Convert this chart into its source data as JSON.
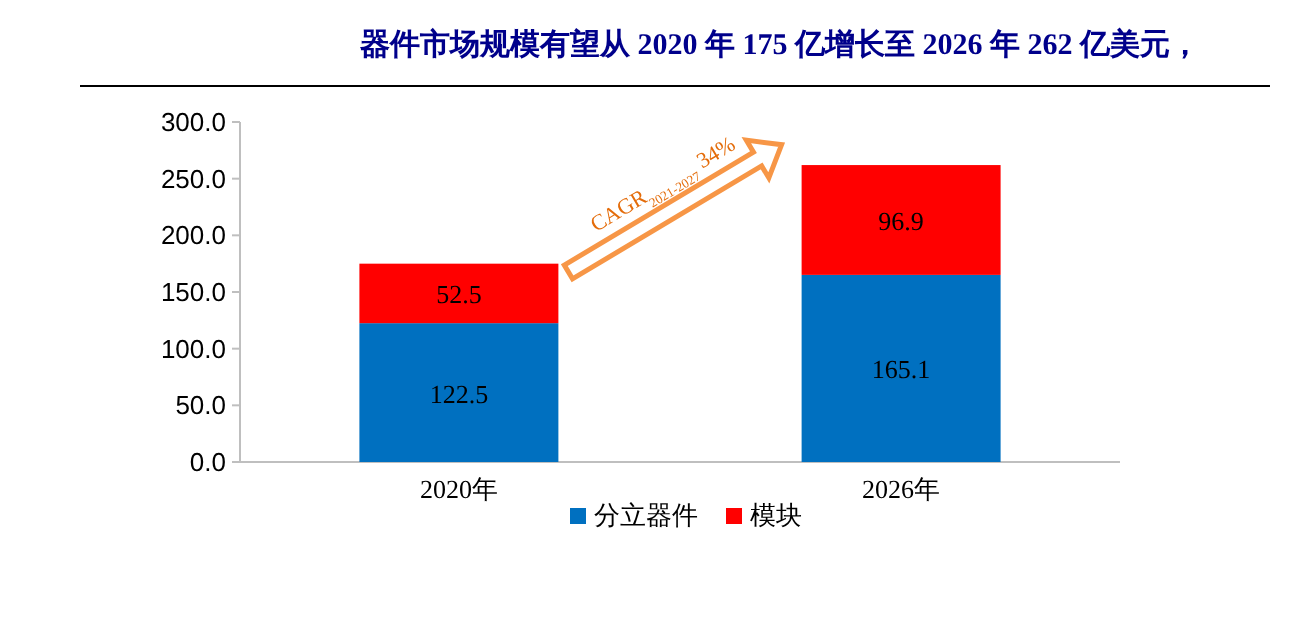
{
  "chart_data": {
    "type": "bar",
    "title": "器件市场规模有望从 2020 年 175 亿增长至 2026 年 262 亿美元，",
    "categories": [
      "2020年",
      "2026年"
    ],
    "series": [
      {
        "name": "分立器件",
        "color": "#0070c0",
        "values": [
          122.5,
          165.1
        ]
      },
      {
        "name": "模块",
        "color": "#ff0000",
        "values": [
          52.5,
          96.9
        ]
      }
    ],
    "stacked": true,
    "data_labels": true,
    "legend": "bottom",
    "ylim": [
      0,
      300
    ],
    "yticks": [
      {
        "value": 0,
        "label": "0.0"
      },
      {
        "value": 50,
        "label": "50.0"
      },
      {
        "value": 100,
        "label": "100.0"
      },
      {
        "value": 150,
        "label": "150.0"
      },
      {
        "value": 200,
        "label": "200.0"
      },
      {
        "value": 250,
        "label": "250.0"
      },
      {
        "value": 300,
        "label": "300.0"
      }
    ],
    "annotations": [
      "CAGR$_{2021-2027}$ 34%"
    ]
  }
}
